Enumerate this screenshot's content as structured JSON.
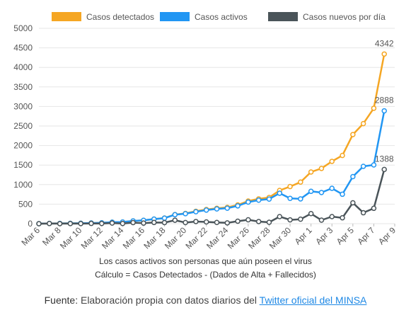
{
  "chart_data": {
    "type": "line",
    "x_labels": [
      "Mar 6",
      "Mar 8",
      "Mar 10",
      "Mar 12",
      "Mar 14",
      "Mar 16",
      "Mar 18",
      "Mar 20",
      "Mar 22",
      "Mar 24",
      "Mar 26",
      "Mar 28",
      "Mar 30",
      "Apr 1",
      "Apr 3",
      "Apr 5",
      "Apr 7",
      "Apr 9"
    ],
    "dates": [
      "Mar 6",
      "Mar 7",
      "Mar 8",
      "Mar 9",
      "Mar 10",
      "Mar 11",
      "Mar 12",
      "Mar 13",
      "Mar 14",
      "Mar 15",
      "Mar 16",
      "Mar 17",
      "Mar 18",
      "Mar 19",
      "Mar 20",
      "Mar 21",
      "Mar 22",
      "Mar 23",
      "Mar 24",
      "Mar 25",
      "Mar 26",
      "Mar 27",
      "Mar 28",
      "Mar 29",
      "Mar 30",
      "Mar 31",
      "Apr 1",
      "Apr 2",
      "Apr 3",
      "Apr 4",
      "Apr 5",
      "Apr 6",
      "Apr 7",
      "Apr 8"
    ],
    "ylim": [
      0,
      5000
    ],
    "y_ticks": [
      0,
      500,
      1000,
      1500,
      2000,
      2500,
      3000,
      3500,
      4000,
      4500,
      5000
    ],
    "grid": true,
    "legend_position": "top",
    "series": [
      {
        "name": "Casos detectados",
        "color": "#f5a623",
        "values": [
          1,
          6,
          7,
          9,
          11,
          17,
          22,
          38,
          43,
          71,
          86,
          117,
          145,
          234,
          263,
          318,
          363,
          395,
          416,
          480,
          580,
          635,
          671,
          852,
          950,
          1065,
          1323,
          1414,
          1595,
          1746,
          2281,
          2561,
          2954,
          4342
        ],
        "end_label": "4342"
      },
      {
        "name": "Casos activos",
        "color": "#2196f3",
        "values": [
          1,
          6,
          7,
          9,
          11,
          17,
          22,
          38,
          43,
          71,
          86,
          117,
          142,
          230,
          256,
          306,
          348,
          378,
          396,
          456,
          553,
          602,
          630,
          780,
          648,
          635,
          828,
          798,
          905,
          753,
          1205,
          1468,
          1504,
          2888
        ],
        "end_label": "2888"
      },
      {
        "name": "Casos nuevos por día",
        "color": "#4a5459",
        "values": [
          0,
          5,
          1,
          2,
          2,
          6,
          5,
          16,
          5,
          28,
          15,
          31,
          28,
          89,
          29,
          55,
          45,
          32,
          21,
          64,
          100,
          55,
          36,
          181,
          98,
          115,
          258,
          91,
          181,
          151,
          535,
          280,
          393,
          1388
        ],
        "end_label": "1388"
      }
    ]
  },
  "notes": {
    "line1": "Los casos activos son personas que aún poseen el virus",
    "line2": "Cálculo = Casos Detectados - (Dados de Alta + Fallecidos)"
  },
  "source": {
    "label": "Fuente:",
    "text": "Elaboración propia con datos diarios del",
    "link_text": "Twitter oficial del MINSA"
  }
}
